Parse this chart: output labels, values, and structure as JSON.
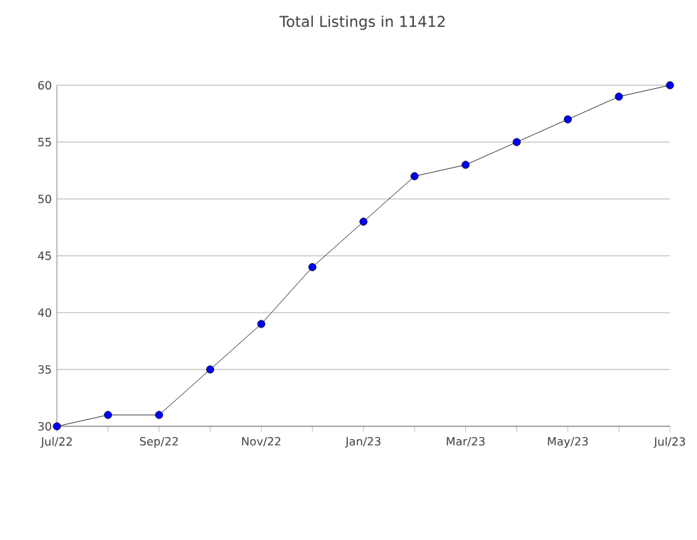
{
  "chart_data": {
    "type": "line",
    "title": "Total Listings in 11412",
    "categories": [
      "Jul/22",
      null,
      "Sep/22",
      null,
      "Nov/22",
      null,
      "Jan/23",
      null,
      "Mar/23",
      null,
      "May/23",
      null,
      "Jul/23"
    ],
    "values": [
      30,
      31,
      31,
      35,
      39,
      44,
      48,
      52,
      53,
      55,
      57,
      59,
      60
    ],
    "color": "#0000ff",
    "marker": "circle",
    "line_style": "solid",
    "ylim": [
      30,
      60
    ],
    "yticks": [
      30,
      35,
      40,
      45,
      50,
      55,
      60
    ],
    "grid": "y"
  }
}
